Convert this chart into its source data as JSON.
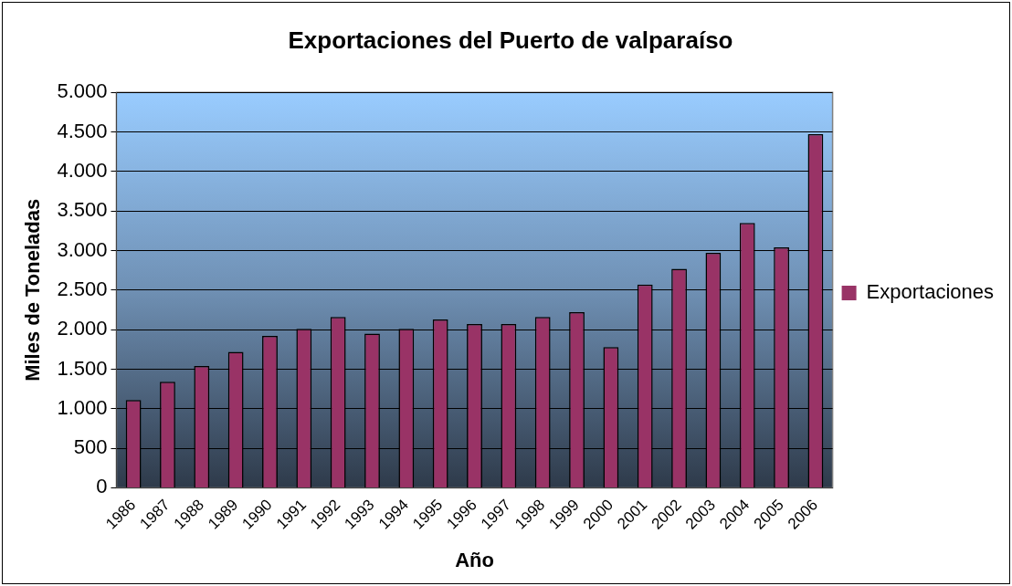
{
  "chart_data": {
    "type": "bar",
    "title": "Exportaciones del Puerto de valparaíso",
    "xlabel": "Año",
    "ylabel": "Miles de Toneladas",
    "categories": [
      "1986",
      "1987",
      "1988",
      "1989",
      "1990",
      "1991",
      "1992",
      "1993",
      "1994",
      "1995",
      "1996",
      "1997",
      "1998",
      "1999",
      "2000",
      "2001",
      "2002",
      "2003",
      "2004",
      "2005",
      "2006"
    ],
    "series": [
      {
        "name": "Exportaciones",
        "color": "#993366",
        "values": [
          1110,
          1340,
          1540,
          1720,
          1920,
          2010,
          2160,
          1950,
          2010,
          2130,
          2070,
          2070,
          2160,
          2220,
          1780,
          2570,
          2770,
          2970,
          3350,
          3040,
          4470
        ]
      }
    ],
    "ylim": [
      0,
      5000
    ],
    "yticks": [
      {
        "value": 0,
        "label": "0"
      },
      {
        "value": 500,
        "label": "500"
      },
      {
        "value": 1000,
        "label": "1.000"
      },
      {
        "value": 1500,
        "label": "1.500"
      },
      {
        "value": 2000,
        "label": "2.000"
      },
      {
        "value": 2500,
        "label": "2.500"
      },
      {
        "value": 3000,
        "label": "3.000"
      },
      {
        "value": 3500,
        "label": "3.500"
      },
      {
        "value": 4000,
        "label": "4.000"
      },
      {
        "value": 4500,
        "label": "4.500"
      },
      {
        "value": 5000,
        "label": "5.000"
      }
    ],
    "grid": "y",
    "legend": "right"
  }
}
